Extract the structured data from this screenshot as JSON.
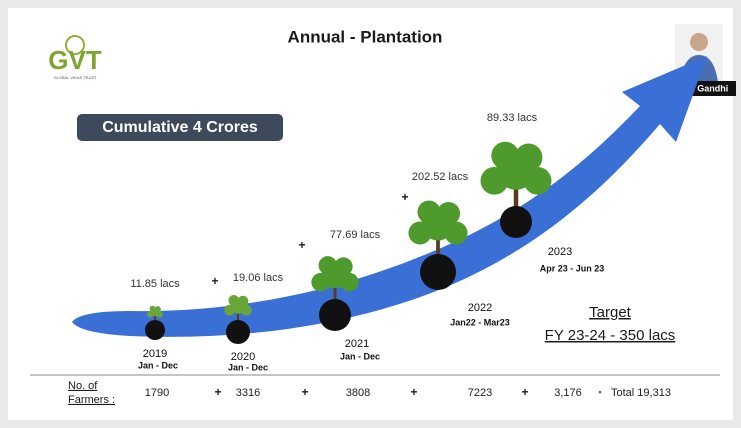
{
  "header": {
    "logo": "GVT",
    "logo_subtitle": "GLOBAL VIKAS TRUST",
    "title": "Annual - Plantation",
    "presenter": "Mayank Gandhi"
  },
  "badge": "Cumulative 4 Crores",
  "separator": "+",
  "milestones": [
    {
      "amount": "11.85 lacs",
      "year": "2019",
      "period": "Jan - Dec"
    },
    {
      "amount": "19.06 lacs",
      "year": "2020",
      "period": "Jan - Dec"
    },
    {
      "amount": "77.69 lacs",
      "year": "2021",
      "period": "Jan - Dec"
    },
    {
      "amount": "202.52 lacs",
      "year": "2022",
      "period": "Jan22 - Mar23"
    },
    {
      "amount": "89.33 lacs",
      "year": "2023",
      "period": "Apr 23 - Jun 23"
    }
  ],
  "target": {
    "label": "Target",
    "value": "FY 23-24 - 350 lacs"
  },
  "farmers": {
    "label_line1": "No. of",
    "label_line2": "Farmers :",
    "counts": [
      "1790",
      "3316",
      "3808",
      "7223",
      "3,176"
    ],
    "bullet": "•",
    "total": "Total 19,313"
  }
}
